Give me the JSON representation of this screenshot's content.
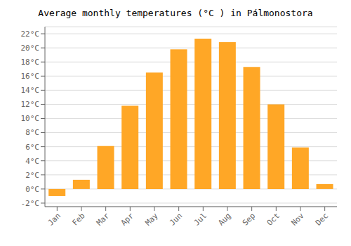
{
  "chart_data": {
    "type": "bar",
    "title": "Average monthly temperatures (°C ) in Pálmonostora",
    "categories": [
      "Jan",
      "Feb",
      "Mar",
      "Apr",
      "May",
      "Jun",
      "Jul",
      "Aug",
      "Sep",
      "Oct",
      "Nov",
      "Dec"
    ],
    "values": [
      -1.0,
      1.3,
      6.1,
      11.8,
      16.5,
      19.8,
      21.3,
      20.8,
      17.3,
      12.0,
      5.9,
      0.7
    ],
    "color": "#FFA726",
    "ylim": [
      -2.5,
      23
    ],
    "yticks": [
      {
        "value": -2,
        "label": "-2°C"
      },
      {
        "value": 0,
        "label": "0°C"
      },
      {
        "value": 2,
        "label": "2°C"
      },
      {
        "value": 4,
        "label": "4°C"
      },
      {
        "value": 6,
        "label": "6°C"
      },
      {
        "value": 8,
        "label": "8°C"
      },
      {
        "value": 10,
        "label": "10°C"
      },
      {
        "value": 12,
        "label": "12°C"
      },
      {
        "value": 14,
        "label": "14°C"
      },
      {
        "value": 16,
        "label": "16°C"
      },
      {
        "value": 18,
        "label": "18°C"
      },
      {
        "value": 20,
        "label": "20°C"
      },
      {
        "value": 22,
        "label": "22°C"
      }
    ],
    "grid": true
  }
}
